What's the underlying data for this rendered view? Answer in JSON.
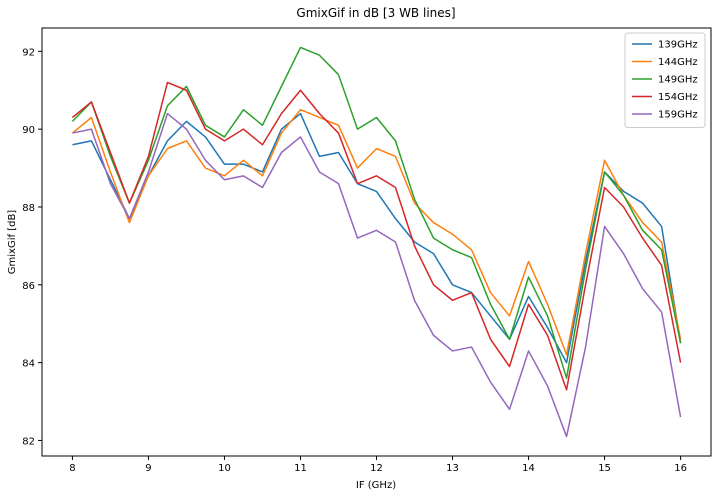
{
  "chart_data": {
    "type": "line",
    "title": "GmixGif in dB [3 WB lines]",
    "xlabel": "IF (GHz)",
    "ylabel": "GmixGif [dB]",
    "xlim": [
      7.6,
      16.4
    ],
    "ylim": [
      81.6,
      92.6
    ],
    "xticks": [
      8,
      9,
      10,
      11,
      12,
      13,
      14,
      15,
      16
    ],
    "yticks": [
      82,
      84,
      86,
      88,
      90,
      92
    ],
    "grid": false,
    "legend_position": "top-right",
    "x": [
      8.0,
      8.25,
      8.5,
      8.75,
      9.0,
      9.25,
      9.5,
      9.75,
      10.0,
      10.25,
      10.5,
      10.75,
      11.0,
      11.25,
      11.5,
      11.75,
      12.0,
      12.25,
      12.5,
      12.75,
      13.0,
      13.25,
      13.5,
      13.75,
      14.0,
      14.25,
      14.5,
      14.75,
      15.0,
      15.25,
      15.5,
      15.75,
      16.0
    ],
    "series": [
      {
        "name": "139GHz",
        "color": "#1f77b4",
        "values": [
          89.6,
          89.7,
          88.7,
          87.7,
          88.8,
          89.7,
          90.2,
          89.8,
          89.1,
          89.1,
          88.9,
          90.0,
          90.4,
          89.3,
          89.4,
          88.6,
          88.4,
          87.7,
          87.1,
          86.8,
          86.0,
          85.8,
          85.2,
          84.6,
          85.7,
          84.9,
          84.0,
          86.6,
          88.9,
          88.4,
          88.1,
          87.5,
          84.5
        ]
      },
      {
        "name": "144GHz",
        "color": "#ff7f0e",
        "values": [
          89.9,
          90.3,
          88.9,
          87.6,
          88.8,
          89.5,
          89.7,
          89.0,
          88.8,
          89.2,
          88.8,
          89.9,
          90.5,
          90.3,
          90.1,
          89.0,
          89.5,
          89.3,
          88.1,
          87.6,
          87.3,
          86.9,
          85.8,
          85.2,
          86.6,
          85.5,
          84.2,
          86.8,
          89.2,
          88.3,
          87.6,
          87.1,
          84.6
        ]
      },
      {
        "name": "149GHz",
        "color": "#2ca02c",
        "values": [
          90.2,
          90.7,
          89.3,
          88.1,
          89.2,
          90.6,
          91.1,
          90.1,
          89.8,
          90.5,
          90.1,
          91.1,
          92.1,
          91.9,
          91.4,
          90.0,
          90.3,
          89.7,
          88.2,
          87.2,
          86.9,
          86.7,
          85.5,
          84.6,
          86.2,
          85.2,
          83.6,
          86.4,
          88.9,
          88.3,
          87.4,
          86.9,
          84.5
        ]
      },
      {
        "name": "154GHz",
        "color": "#d62728",
        "values": [
          90.3,
          90.7,
          89.4,
          88.1,
          89.3,
          91.2,
          91.0,
          90.0,
          89.7,
          90.0,
          89.6,
          90.4,
          91.0,
          90.4,
          89.9,
          88.6,
          88.8,
          88.5,
          87.0,
          86.0,
          85.6,
          85.8,
          84.6,
          83.9,
          85.5,
          84.7,
          83.3,
          86.0,
          88.5,
          88.0,
          87.2,
          86.5,
          84.0
        ]
      },
      {
        "name": "159GHz",
        "color": "#9467bd",
        "values": [
          89.9,
          90.0,
          88.6,
          87.7,
          88.9,
          90.4,
          90.0,
          89.2,
          88.7,
          88.8,
          88.5,
          89.4,
          89.8,
          88.9,
          88.6,
          87.2,
          87.4,
          87.1,
          85.6,
          84.7,
          84.3,
          84.4,
          83.5,
          82.8,
          84.3,
          83.4,
          82.1,
          84.4,
          87.5,
          86.8,
          85.9,
          85.3,
          82.6
        ]
      }
    ]
  }
}
